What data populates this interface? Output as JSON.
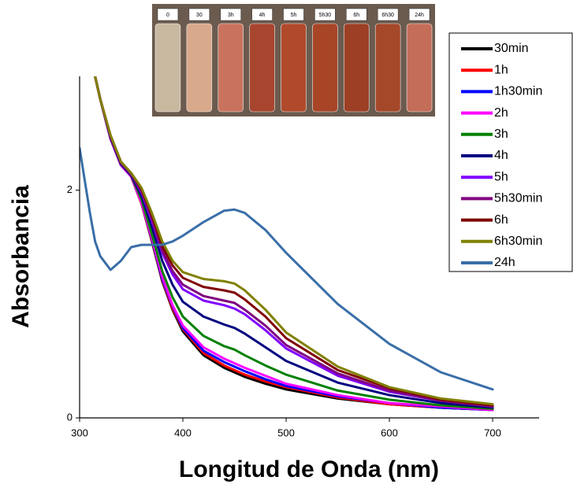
{
  "inset": {
    "labels": [
      "0",
      "30",
      "3h",
      "4h",
      "5h",
      "5h30",
      "6h",
      "6h30",
      "24h"
    ]
  },
  "chart_data": {
    "type": "line",
    "x_label": "Longitud de Onda (nm)",
    "y_label": "Absorbancia",
    "x": [
      300,
      310,
      315,
      320,
      330,
      340,
      350,
      360,
      370,
      380,
      390,
      400,
      420,
      440,
      450,
      460,
      480,
      500,
      550,
      600,
      650,
      700
    ],
    "xlim": [
      300,
      745
    ],
    "ylim": [
      0,
      3
    ],
    "xticks": [
      300,
      400,
      500,
      600,
      700
    ],
    "yticks": [
      0,
      2
    ],
    "legend": "top-right",
    "series": [
      {
        "name": "30min",
        "color": "#000000",
        "values": [
          null,
          null,
          3.0,
          2.8,
          2.45,
          2.22,
          2.12,
          1.88,
          1.55,
          1.2,
          0.95,
          0.76,
          0.55,
          0.44,
          0.4,
          0.36,
          0.3,
          0.25,
          0.17,
          0.12,
          0.09,
          0.07
        ]
      },
      {
        "name": "1h",
        "color": "#ff0000",
        "values": [
          null,
          null,
          3.0,
          2.8,
          2.45,
          2.22,
          2.12,
          1.88,
          1.56,
          1.21,
          0.96,
          0.78,
          0.57,
          0.46,
          0.42,
          0.38,
          0.32,
          0.27,
          0.18,
          0.12,
          0.09,
          0.07
        ]
      },
      {
        "name": "1h30min",
        "color": "#0000ff",
        "values": [
          null,
          null,
          3.0,
          2.8,
          2.45,
          2.22,
          2.12,
          1.89,
          1.57,
          1.22,
          0.98,
          0.79,
          0.59,
          0.49,
          0.45,
          0.41,
          0.34,
          0.28,
          0.19,
          0.13,
          0.09,
          0.07
        ]
      },
      {
        "name": "2h",
        "color": "#ff00ff",
        "values": [
          null,
          null,
          3.0,
          2.8,
          2.45,
          2.22,
          2.12,
          1.89,
          1.58,
          1.24,
          0.99,
          0.81,
          0.62,
          0.52,
          0.48,
          0.44,
          0.37,
          0.3,
          0.2,
          0.13,
          0.1,
          0.07
        ]
      },
      {
        "name": "3h",
        "color": "#008000",
        "values": [
          null,
          null,
          3.0,
          2.8,
          2.46,
          2.23,
          2.13,
          1.92,
          1.61,
          1.29,
          1.06,
          0.89,
          0.72,
          0.63,
          0.6,
          0.55,
          0.46,
          0.38,
          0.24,
          0.16,
          0.11,
          0.08
        ]
      },
      {
        "name": "4h",
        "color": "#000080",
        "values": [
          null,
          null,
          3.0,
          2.8,
          2.46,
          2.23,
          2.13,
          1.95,
          1.68,
          1.38,
          1.17,
          1.02,
          0.89,
          0.82,
          0.79,
          0.74,
          0.62,
          0.5,
          0.31,
          0.2,
          0.13,
          0.09
        ]
      },
      {
        "name": "5h",
        "color": "#8000ff",
        "values": [
          null,
          null,
          3.0,
          2.8,
          2.47,
          2.24,
          2.14,
          1.98,
          1.73,
          1.45,
          1.26,
          1.13,
          1.03,
          0.99,
          0.96,
          0.91,
          0.77,
          0.61,
          0.37,
          0.23,
          0.15,
          0.1
        ]
      },
      {
        "name": "5h30min",
        "color": "#800080",
        "values": [
          null,
          null,
          3.0,
          2.8,
          2.47,
          2.24,
          2.14,
          1.99,
          1.75,
          1.47,
          1.29,
          1.17,
          1.07,
          1.03,
          1.01,
          0.95,
          0.81,
          0.64,
          0.39,
          0.24,
          0.15,
          0.1
        ]
      },
      {
        "name": "6h",
        "color": "#800000",
        "values": [
          null,
          null,
          3.0,
          2.8,
          2.48,
          2.25,
          2.15,
          2.01,
          1.78,
          1.51,
          1.34,
          1.23,
          1.15,
          1.12,
          1.1,
          1.04,
          0.89,
          0.7,
          0.42,
          0.26,
          0.16,
          0.11
        ]
      },
      {
        "name": "6h30min",
        "color": "#808000",
        "values": [
          null,
          null,
          3.0,
          2.8,
          2.48,
          2.25,
          2.15,
          2.02,
          1.8,
          1.55,
          1.38,
          1.28,
          1.22,
          1.2,
          1.18,
          1.12,
          0.95,
          0.75,
          0.45,
          0.27,
          0.17,
          0.12
        ]
      },
      {
        "name": "24h",
        "color": "#3a6ea8",
        "values": [
          2.37,
          1.8,
          1.55,
          1.42,
          1.3,
          1.38,
          1.5,
          1.52,
          1.52,
          1.52,
          1.55,
          1.6,
          1.72,
          1.82,
          1.83,
          1.8,
          1.65,
          1.45,
          1.0,
          0.65,
          0.4,
          0.25
        ]
      }
    ]
  }
}
